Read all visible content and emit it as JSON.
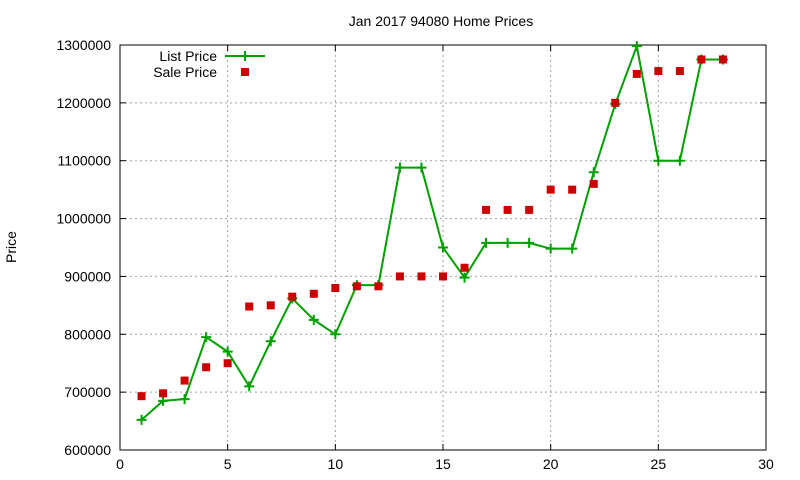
{
  "chart_data": {
    "type": "line",
    "title": "Jan 2017 94080 Home Prices",
    "xlabel": "",
    "ylabel": "Price",
    "xlim": [
      0,
      30
    ],
    "ylim": [
      600000,
      1300000
    ],
    "x_ticks": [
      0,
      5,
      10,
      15,
      20,
      25,
      30
    ],
    "y_ticks": [
      600000,
      700000,
      800000,
      900000,
      1000000,
      1100000,
      1200000,
      1300000
    ],
    "grid": true,
    "legend_position": "top-left",
    "series": [
      {
        "name": "List Price",
        "style": "line-with-plus-markers",
        "color": "#00a000",
        "points": [
          [
            1,
            652000
          ],
          [
            2,
            685000
          ],
          [
            3,
            688000
          ],
          [
            4,
            795000
          ],
          [
            5,
            770000
          ],
          [
            6,
            710000
          ],
          [
            7,
            788000
          ],
          [
            8,
            862000
          ],
          [
            9,
            825000
          ],
          [
            10,
            800000
          ],
          [
            11,
            885000
          ],
          [
            12,
            885000
          ],
          [
            13,
            1088000
          ],
          [
            14,
            1088000
          ],
          [
            15,
            950000
          ],
          [
            16,
            898000
          ],
          [
            17,
            958000
          ],
          [
            18,
            958000
          ],
          [
            19,
            958000
          ],
          [
            20,
            948000
          ],
          [
            21,
            948000
          ],
          [
            22,
            1080000
          ],
          [
            23,
            1198000
          ],
          [
            24,
            1298000
          ],
          [
            25,
            1100000
          ],
          [
            26,
            1100000
          ],
          [
            27,
            1275000
          ],
          [
            28,
            1275000
          ]
        ]
      },
      {
        "name": "Sale Price",
        "style": "square-markers",
        "color": "#cc0000",
        "points": [
          [
            1,
            693000
          ],
          [
            2,
            698000
          ],
          [
            3,
            720000
          ],
          [
            4,
            743000
          ],
          [
            5,
            750000
          ],
          [
            6,
            848000
          ],
          [
            7,
            850000
          ],
          [
            8,
            865000
          ],
          [
            9,
            870000
          ],
          [
            10,
            880000
          ],
          [
            11,
            883000
          ],
          [
            12,
            883000
          ],
          [
            13,
            900000
          ],
          [
            14,
            900000
          ],
          [
            15,
            900000
          ],
          [
            16,
            915000
          ],
          [
            17,
            1015000
          ],
          [
            18,
            1015000
          ],
          [
            19,
            1015000
          ],
          [
            20,
            1050000
          ],
          [
            21,
            1050000
          ],
          [
            22,
            1060000
          ],
          [
            23,
            1200000
          ],
          [
            24,
            1250000
          ],
          [
            25,
            1255000
          ],
          [
            26,
            1255000
          ],
          [
            27,
            1275000
          ],
          [
            28,
            1275000
          ]
        ]
      }
    ]
  }
}
